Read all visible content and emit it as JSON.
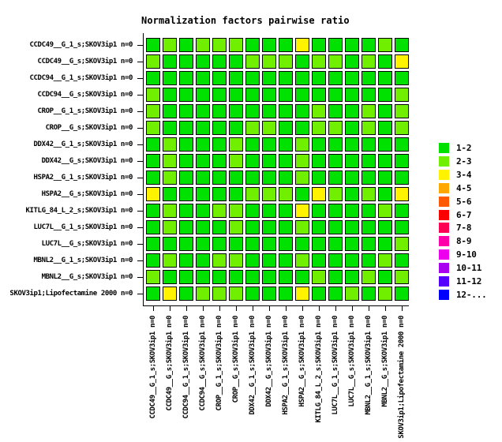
{
  "title": "Normalization factors pairwise ratio",
  "chart_data": {
    "type": "heatmap",
    "title": "Normalization factors pairwise ratio",
    "labels": [
      "CCDC49__G_1_s;SKOV3ip1 n=0",
      "CCDC49__G_s;SKOV3ip1 n=0",
      "CCDC94__G_1_s;SKOV3ip1 n=0",
      "CCDC94__G_s;SKOV3ip1 n=0",
      "CROP__G_1_s;SKOV3ip1 n=0",
      "CROP__G_s;SKOV3ip1 n=0",
      "DDX42__G_1_s;SKOV3ip1 n=0",
      "DDX42__G_s;SKOV3ip1 n=0",
      "HSPA2__G_1_s;SKOV3ip1 n=0",
      "HSPA2__G_s;SKOV3ip1 n=0",
      "KITLG_84_L_2_s;SKOV3ip1 n=0",
      "LUC7L__G_1_s;SKOV3ip1 n=0",
      "LUC7L__G_s;SKOV3ip1 n=0",
      "MBNL2__G_1_s;SKOV3ip1 n=0",
      "MBNL2__G_s;SKOV3ip1 n=0",
      "SKOV3ip1;Lipofectamine 2000 n=0"
    ],
    "matrix_note": "values are indices into legend bins; matrix is symmetric, rows/cols share labels",
    "matrix": [
      [
        0,
        1,
        0,
        1,
        1,
        1,
        0,
        0,
        0,
        2,
        0,
        0,
        0,
        0,
        1,
        0
      ],
      [
        1,
        0,
        0,
        0,
        0,
        0,
        1,
        1,
        1,
        0,
        1,
        1,
        0,
        1,
        0,
        2
      ],
      [
        0,
        0,
        0,
        0,
        0,
        0,
        0,
        0,
        0,
        0,
        0,
        0,
        0,
        0,
        0,
        0
      ],
      [
        1,
        0,
        0,
        0,
        0,
        0,
        0,
        0,
        0,
        0,
        0,
        0,
        0,
        0,
        0,
        1
      ],
      [
        1,
        0,
        0,
        0,
        0,
        0,
        0,
        0,
        0,
        0,
        1,
        0,
        0,
        1,
        0,
        1
      ],
      [
        1,
        0,
        0,
        0,
        0,
        0,
        1,
        1,
        0,
        0,
        1,
        1,
        0,
        1,
        0,
        1
      ],
      [
        0,
        1,
        0,
        0,
        0,
        1,
        0,
        0,
        0,
        1,
        0,
        0,
        0,
        0,
        0,
        0
      ],
      [
        0,
        1,
        0,
        0,
        0,
        1,
        0,
        0,
        0,
        1,
        0,
        0,
        0,
        0,
        0,
        0
      ],
      [
        0,
        1,
        0,
        0,
        0,
        0,
        0,
        0,
        0,
        1,
        0,
        0,
        0,
        0,
        0,
        0
      ],
      [
        2,
        0,
        0,
        0,
        0,
        0,
        1,
        1,
        1,
        0,
        2,
        1,
        0,
        1,
        0,
        2
      ],
      [
        0,
        1,
        0,
        0,
        1,
        1,
        0,
        0,
        0,
        2,
        0,
        0,
        0,
        0,
        1,
        0
      ],
      [
        0,
        1,
        0,
        0,
        0,
        1,
        0,
        0,
        0,
        1,
        0,
        0,
        0,
        0,
        0,
        0
      ],
      [
        0,
        0,
        0,
        0,
        0,
        0,
        0,
        0,
        0,
        0,
        0,
        0,
        0,
        0,
        0,
        1
      ],
      [
        0,
        1,
        0,
        0,
        1,
        1,
        0,
        0,
        0,
        1,
        0,
        0,
        0,
        0,
        1,
        0
      ],
      [
        1,
        0,
        0,
        0,
        0,
        0,
        0,
        0,
        0,
        0,
        1,
        0,
        0,
        1,
        0,
        1
      ],
      [
        0,
        2,
        0,
        1,
        1,
        1,
        0,
        0,
        0,
        2,
        0,
        0,
        1,
        0,
        1,
        0
      ]
    ],
    "legend": [
      {
        "label": "1-2",
        "color": "#00E100"
      },
      {
        "label": "2-3",
        "color": "#70F000"
      },
      {
        "label": "3-4",
        "color": "#FFF300"
      },
      {
        "label": "4-5",
        "color": "#FFA900"
      },
      {
        "label": "5-6",
        "color": "#FF5A00"
      },
      {
        "label": "6-7",
        "color": "#FF0000"
      },
      {
        "label": "7-8",
        "color": "#FF0055"
      },
      {
        "label": "8-9",
        "color": "#FF00AA"
      },
      {
        "label": "9-10",
        "color": "#EE00EE"
      },
      {
        "label": "10-11",
        "color": "#AA00F0"
      },
      {
        "label": "11-12",
        "color": "#5500FF"
      },
      {
        "label": "12-...",
        "color": "#0000FF"
      }
    ],
    "legend_position": "right",
    "grid": "off",
    "cell_border_color": "#000000",
    "background_color": "#FFFFFF"
  }
}
